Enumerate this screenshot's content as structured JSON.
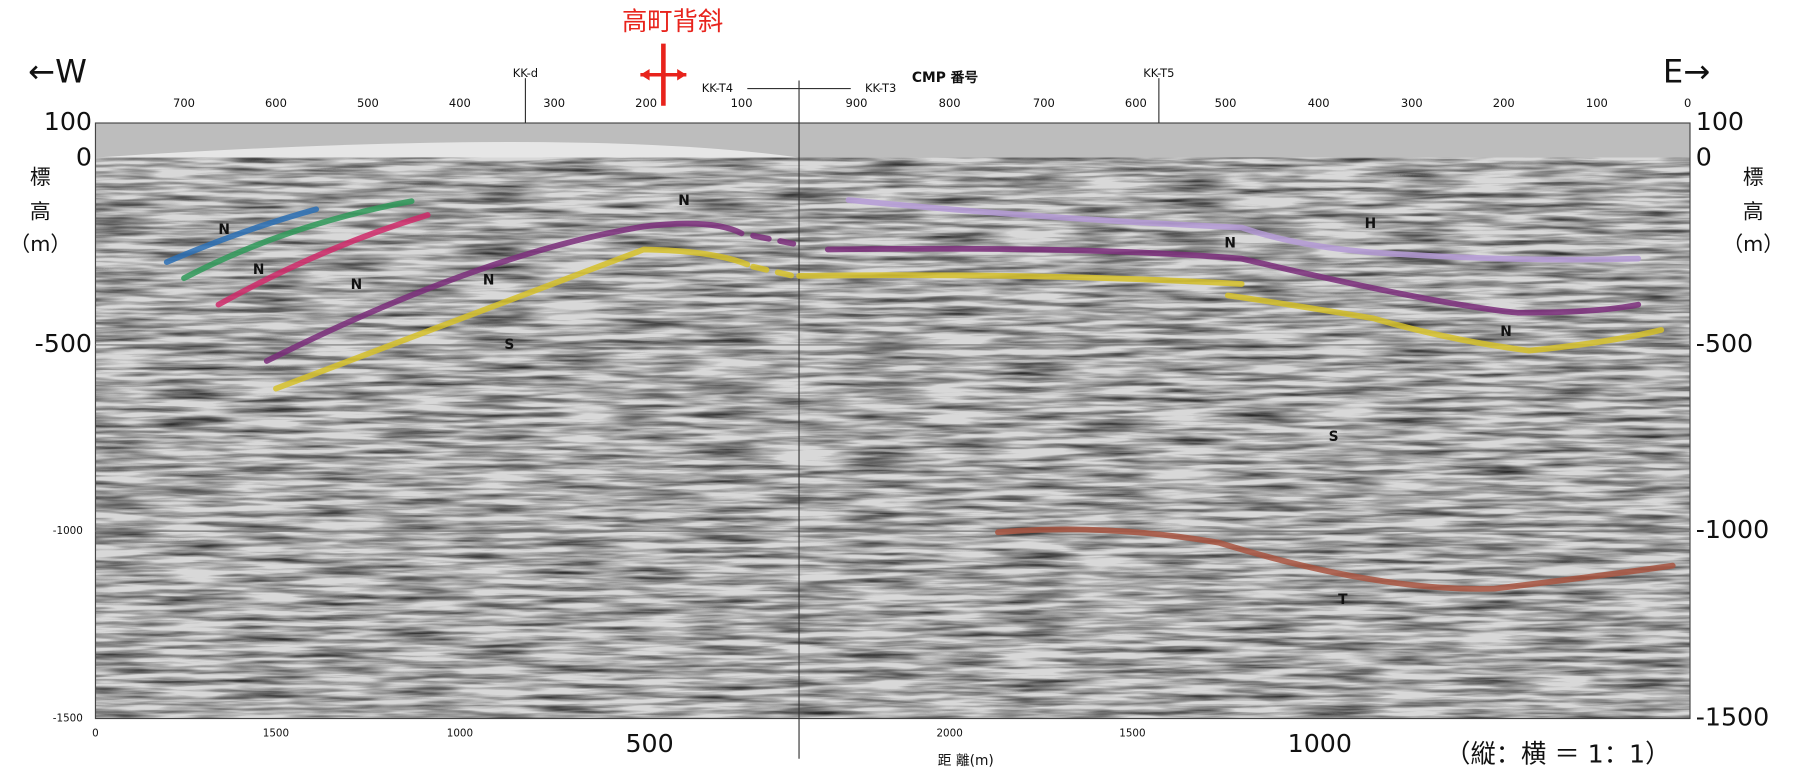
{
  "directions": {
    "west": "←W",
    "east": "E→"
  },
  "anticline": "高町背斜",
  "profile_labels": [
    "KK-d",
    "KK-T4",
    "KK-T3",
    "CMP 番号",
    "KK-T5"
  ],
  "cmp_ticks": [
    "700",
    "600",
    "500",
    "400",
    "300",
    "200",
    "100",
    "900",
    "800",
    "700",
    "600",
    "500",
    "400",
    "300",
    "200",
    "100",
    "0"
  ],
  "elevation_left": [
    "100",
    "0",
    "-500",
    "-1000",
    "-1500"
  ],
  "elevation_right": [
    "100",
    "0",
    "-500",
    "-1000",
    "-1500"
  ],
  "elevation_label": [
    "標",
    "高",
    "（m）"
  ],
  "distance_ticks": [
    "0",
    "1500",
    "1000",
    "500",
    "2000",
    "1500",
    "1000"
  ],
  "distance_label": "距 離(m)",
  "scale_note": "（縦：横 ＝ 1：1）",
  "horizon_labels": [
    "N",
    "N",
    "N",
    "N",
    "N",
    "N",
    "N",
    "S",
    "S",
    "H",
    "T"
  ]
}
